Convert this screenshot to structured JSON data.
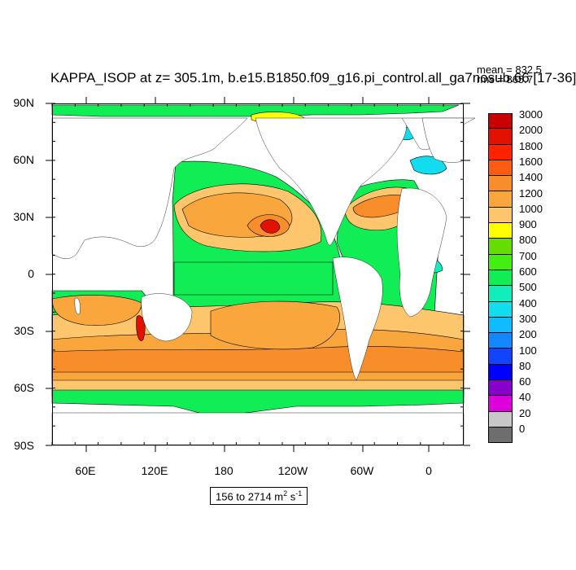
{
  "title": "KAPPA_ISOP at z= 305.1m, b.e15.B1850.f09_g16.pi_control.all_ga7nosub.66 [17-36]",
  "stats": {
    "mean": "mean = 832.5",
    "rms": "rms = 865.7"
  },
  "range_box": {
    "text": "156 to 2714 m",
    "sup1": "2",
    "mid": " s",
    "sup2": "-1"
  },
  "y_labels": [
    "90N",
    "60N",
    "30N",
    "0",
    "30S",
    "60S",
    "90S"
  ],
  "x_labels": [
    "60E",
    "120E",
    "180",
    "120W",
    "60W",
    "0"
  ],
  "legend": {
    "labels": [
      "3000",
      "2000",
      "1800",
      "1600",
      "1400",
      "1200",
      "1000",
      "900",
      "800",
      "700",
      "600",
      "500",
      "400",
      "300",
      "200",
      "100",
      "80",
      "60",
      "40",
      "20",
      "0"
    ],
    "colors": [
      "#c80000",
      "#e21100",
      "#ff2200",
      "#fc5c11",
      "#f78d2b",
      "#f9a63c",
      "#fdc66d",
      "#ffff00",
      "#66dd00",
      "#44ee11",
      "#11ee55",
      "#11eebb",
      "#11ddee",
      "#11bbff",
      "#1188ff",
      "#1144ff",
      "#0000ff",
      "#8800cc",
      "#dd00dd",
      "#c8c8c8",
      "#6e6e6e"
    ]
  },
  "map_colors": {
    "land": "#ffffff",
    "base": "#11ee55",
    "contour": "#000000"
  },
  "chart_data": {
    "type": "heatmap",
    "title": "KAPPA_ISOP at z= 305.1m, b.e15.B1850.f09_g16.pi_control.all_ga7nosub.66 [17-36]",
    "mean": 832.5,
    "rms": 865.7,
    "min": 156,
    "max": 2714,
    "units": "m2 s-1",
    "xlabel": "",
    "ylabel": "",
    "lon_ticks": [
      "60E",
      "120E",
      "180",
      "120W",
      "60W",
      "0"
    ],
    "lat_ticks": [
      "90N",
      "60N",
      "30N",
      "0",
      "30S",
      "60S",
      "90S"
    ],
    "levels": [
      0,
      20,
      40,
      60,
      80,
      100,
      200,
      300,
      400,
      500,
      600,
      700,
      800,
      900,
      1000,
      1200,
      1400,
      1600,
      1800,
      2000,
      3000
    ]
  }
}
